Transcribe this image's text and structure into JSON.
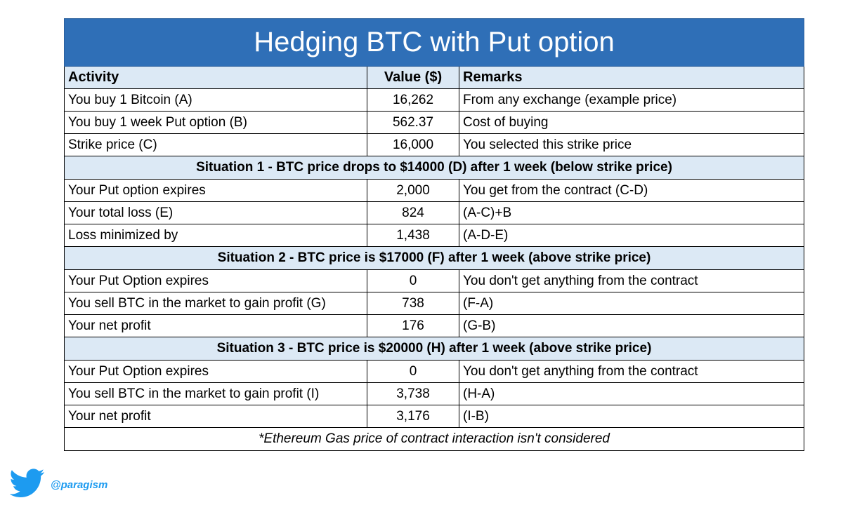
{
  "title": "Hedging BTC with Put option",
  "headers": {
    "activity": "Activity",
    "value": "Value ($)",
    "remarks": "Remarks"
  },
  "base_rows": [
    {
      "activity": "You buy 1 Bitcoin (A)",
      "value": "16,262",
      "remarks": "From any exchange (example price)"
    },
    {
      "activity": "You buy 1 week Put option (B)",
      "value": "562.37",
      "remarks": "Cost of buying"
    },
    {
      "activity": "Strike price (C)",
      "value": "16,000",
      "remarks": "You selected this strike price"
    }
  ],
  "situation1": {
    "title": "Situation 1 - BTC price drops to $14000 (D) after 1 week (below strike price)",
    "rows": [
      {
        "activity": "Your Put option expires",
        "value": "2,000",
        "remarks": "You get from the contract (C-D)"
      },
      {
        "activity": "Your total loss (E)",
        "value": "824",
        "remarks": "(A-C)+B"
      },
      {
        "activity": "Loss minimized by",
        "value": "1,438",
        "remarks": "(A-D-E)"
      }
    ]
  },
  "situation2": {
    "title": "Situation 2 - BTC price is $17000 (F) after 1 week (above strike price)",
    "rows": [
      {
        "activity": "Your Put Option expires",
        "value": "0",
        "remarks": "You don't get anything from the contract"
      },
      {
        "activity": "You sell BTC in the market to gain profit (G)",
        "value": "738",
        "remarks": "(F-A)"
      },
      {
        "activity": "Your net profit",
        "value": "176",
        "remarks": "(G-B)"
      }
    ]
  },
  "situation3": {
    "title": "Situation 3 - BTC price is $20000 (H) after 1 week (above strike price)",
    "rows": [
      {
        "activity": "Your Put Option expires",
        "value": "0",
        "remarks": "You don't get anything from the contract"
      },
      {
        "activity": "You sell BTC in the market to gain profit (I)",
        "value": "3,738",
        "remarks": "(H-A)"
      },
      {
        "activity": "Your net profit",
        "value": "3,176",
        "remarks": "(I-B)"
      }
    ]
  },
  "footnote": "*Ethereum Gas price of contract interaction isn't considered",
  "twitter": {
    "icon": "twitter-bird-icon",
    "handle": "@paragism",
    "color": "#1d9bf0"
  },
  "colors": {
    "title_bg": "#2f6fb7",
    "header_bg": "#dce9f5"
  }
}
